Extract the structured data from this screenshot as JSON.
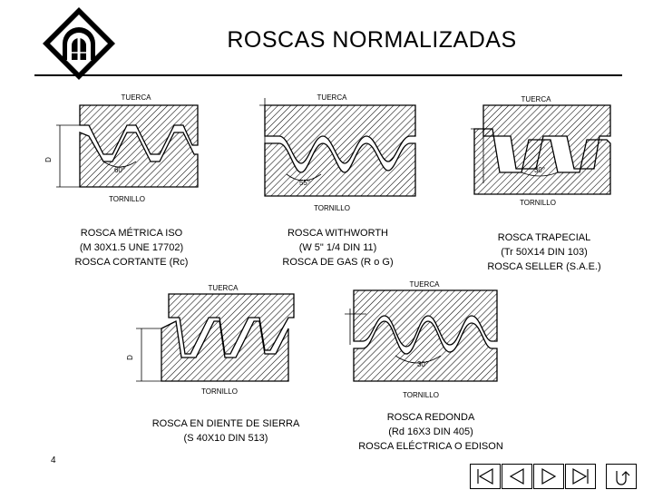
{
  "page": {
    "title": "ROSCAS NORMALIZADAS",
    "page_number": "4"
  },
  "figures": [
    {
      "id": "metrica",
      "labels": {
        "top": "TUERCA",
        "bottom": "TORNILLO",
        "angle": "60°",
        "dim": "D"
      },
      "caption": [
        "ROSCA MÉTRICA ISO",
        "(M 30X1.5 UNE 17702)",
        "ROSCA CORTANTE (Rc)"
      ]
    },
    {
      "id": "withworth",
      "labels": {
        "top": "TUERCA",
        "bottom": "TORNILLO",
        "angle": "55°"
      },
      "caption": [
        "ROSCA WITHWORTH",
        "(W 5\" 1/4 DIN 11)",
        "ROSCA DE GAS (R o G)"
      ]
    },
    {
      "id": "trapecial",
      "labels": {
        "top": "TUERCA",
        "bottom": "TORNILLO",
        "angle": "30°"
      },
      "caption": [
        "ROSCA TRAPECIAL",
        "(Tr 50X14 DIN 103)",
        "ROSCA SELLER (S.A.E.)"
      ]
    },
    {
      "id": "sierra",
      "labels": {
        "top": "TUERCA",
        "bottom": "TORNILLO",
        "dim": "D"
      },
      "caption": [
        "ROSCA EN DIENTE DE SIERRA",
        "(S 40X10 DIN 513)"
      ]
    },
    {
      "id": "redonda",
      "labels": {
        "top": "TUERCA",
        "bottom": "TORNILLO",
        "angle": "30°"
      },
      "caption": [
        "ROSCA REDONDA",
        "(Rd 16X3 DIN 405)",
        "ROSCA ELÉCTRICA O EDISON"
      ]
    }
  ],
  "nav": [
    {
      "name": "first-slide-button",
      "icon": "first-icon"
    },
    {
      "name": "previous-slide-button",
      "icon": "previous-icon"
    },
    {
      "name": "next-slide-button",
      "icon": "next-icon"
    },
    {
      "name": "last-slide-button",
      "icon": "last-icon"
    },
    {
      "name": "return-button",
      "icon": "return-icon"
    }
  ]
}
